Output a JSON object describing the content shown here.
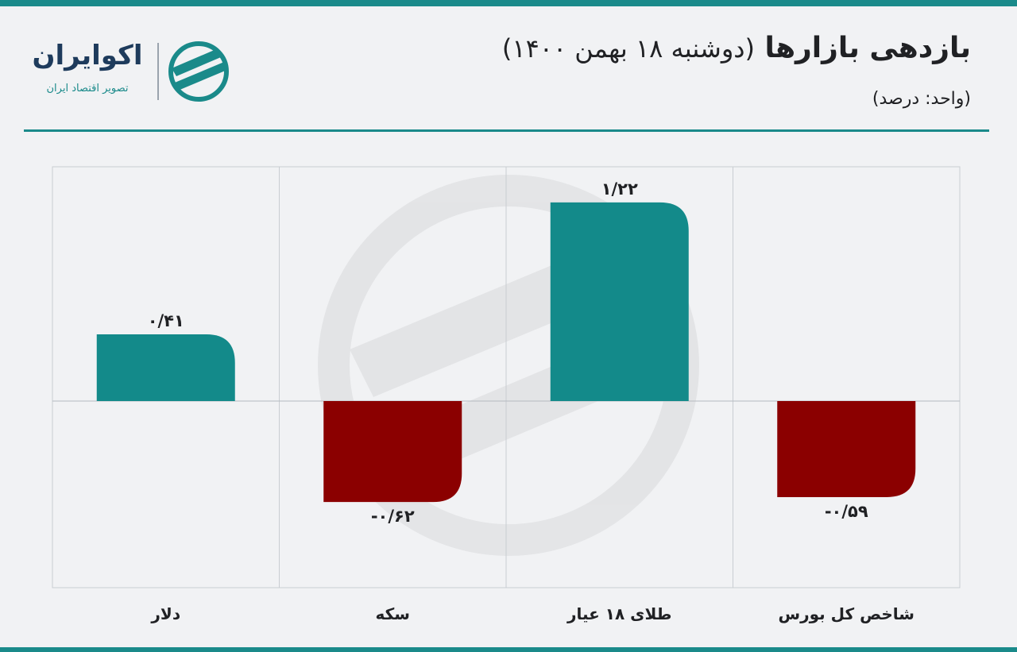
{
  "header": {
    "title": "بازدهی بازارها",
    "date": "(دوشنبه ۱۸ بهمن ۱۴۰۰)",
    "unit": "(واحد: درصد)"
  },
  "brand": {
    "name": "اکوایران",
    "tagline": "تصویر اقتصاد ایران",
    "logo_icon": "ecoiran-logo-icon"
  },
  "colors": {
    "accent": "#1a8a8a",
    "positive": "#138a8a",
    "negative": "#8b0000",
    "text": "#202124"
  },
  "chart_data": {
    "type": "bar",
    "title": "بازدهی بازارها",
    "subtitle": "(دوشنبه ۱۸ بهمن ۱۴۰۰)",
    "ylabel": "(واحد: درصد)",
    "categories": [
      "شاخص کل بورس",
      "طلای ۱۸ عیار",
      "سکه",
      "دلار"
    ],
    "values": [
      -0.59,
      1.22,
      -0.62,
      0.41
    ],
    "value_labels": [
      "-۰/۵۹",
      "۱/۲۲",
      "-۰/۶۲",
      "۰/۴۱"
    ],
    "ylim": [
      -1.0,
      1.25
    ],
    "grid": true,
    "category_order": "right-to-left"
  }
}
